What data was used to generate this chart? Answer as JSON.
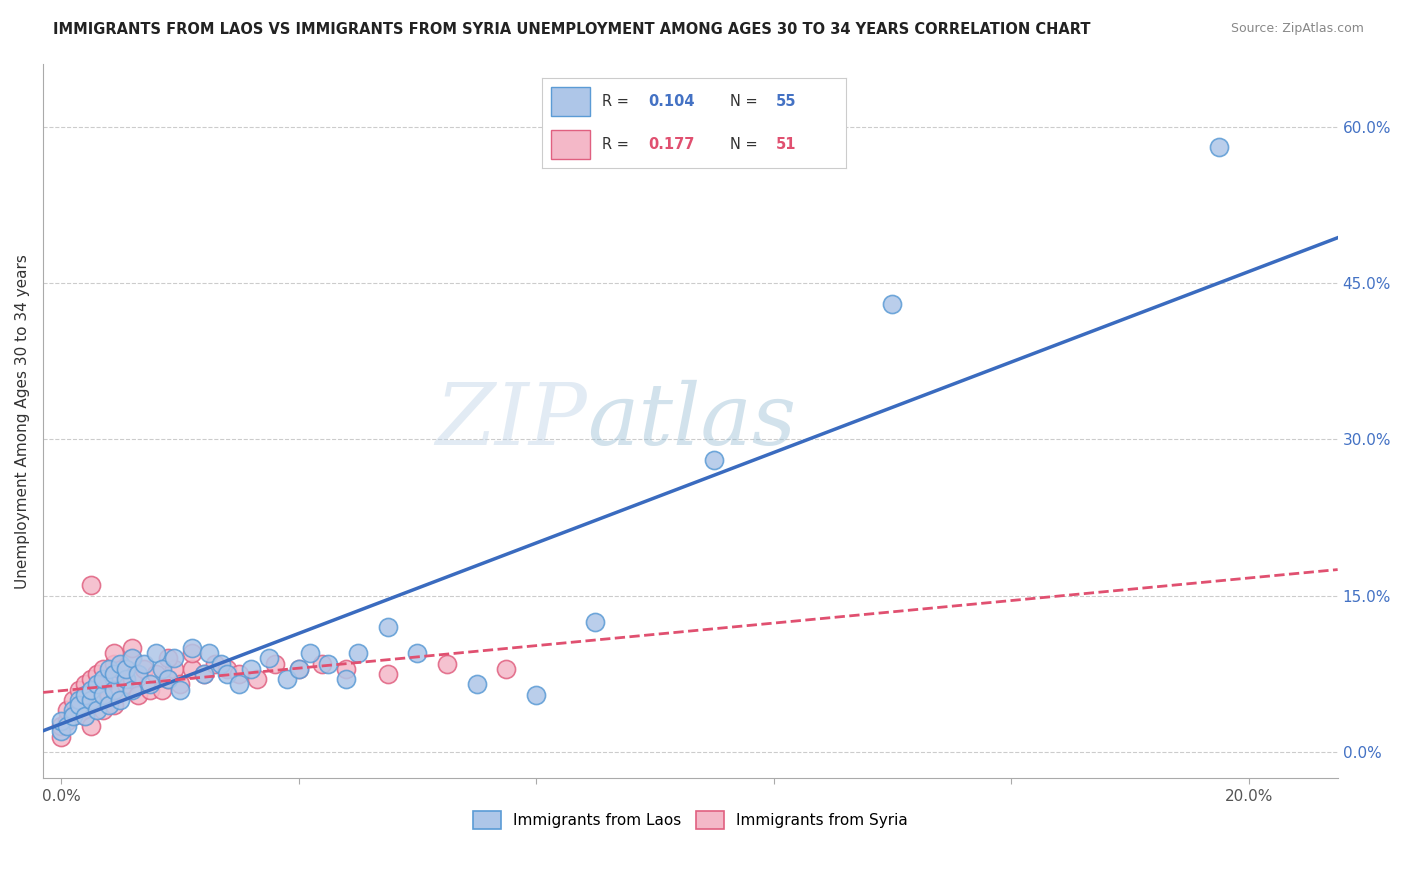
{
  "title": "IMMIGRANTS FROM LAOS VS IMMIGRANTS FROM SYRIA UNEMPLOYMENT AMONG AGES 30 TO 34 YEARS CORRELATION CHART",
  "source": "Source: ZipAtlas.com",
  "ylabel": "Unemployment Among Ages 30 to 34 years",
  "x_ticks": [
    0.0,
    0.04,
    0.08,
    0.12,
    0.16,
    0.2
  ],
  "x_tick_labels": [
    "0.0%",
    "",
    "",
    "",
    "",
    "20.0%"
  ],
  "y_ticks": [
    0.0,
    0.15,
    0.3,
    0.45,
    0.6
  ],
  "y_tick_labels_right": [
    "0.0%",
    "15.0%",
    "30.0%",
    "45.0%",
    "60.0%"
  ],
  "x_min": -0.003,
  "x_max": 0.215,
  "y_min": -0.025,
  "y_max": 0.66,
  "laos_color": "#aec6e8",
  "laos_edge_color": "#5b9bd5",
  "syria_color": "#f4b8c8",
  "syria_edge_color": "#e06080",
  "laos_R": "0.104",
  "laos_N": "55",
  "syria_R": "0.177",
  "syria_N": "51",
  "laos_line_color": "#3a6bbf",
  "laos_line_style": "-",
  "syria_line_color": "#e05070",
  "syria_line_style": "--",
  "watermark_zip": "ZIP",
  "watermark_atlas": "atlas",
  "laos_scatter_x": [
    0.0,
    0.0,
    0.001,
    0.002,
    0.002,
    0.003,
    0.003,
    0.004,
    0.004,
    0.005,
    0.005,
    0.006,
    0.006,
    0.007,
    0.007,
    0.008,
    0.008,
    0.009,
    0.009,
    0.01,
    0.01,
    0.011,
    0.011,
    0.012,
    0.012,
    0.013,
    0.014,
    0.015,
    0.016,
    0.017,
    0.018,
    0.019,
    0.02,
    0.022,
    0.024,
    0.025,
    0.027,
    0.028,
    0.03,
    0.032,
    0.035,
    0.038,
    0.04,
    0.042,
    0.045,
    0.048,
    0.05,
    0.055,
    0.06,
    0.07,
    0.08,
    0.09,
    0.11,
    0.14,
    0.195
  ],
  "laos_scatter_y": [
    0.02,
    0.03,
    0.025,
    0.04,
    0.035,
    0.05,
    0.045,
    0.035,
    0.055,
    0.05,
    0.06,
    0.04,
    0.065,
    0.055,
    0.07,
    0.045,
    0.08,
    0.06,
    0.075,
    0.05,
    0.085,
    0.07,
    0.08,
    0.06,
    0.09,
    0.075,
    0.085,
    0.065,
    0.095,
    0.08,
    0.07,
    0.09,
    0.06,
    0.1,
    0.075,
    0.095,
    0.085,
    0.075,
    0.065,
    0.08,
    0.09,
    0.07,
    0.08,
    0.095,
    0.085,
    0.07,
    0.095,
    0.12,
    0.095,
    0.065,
    0.055,
    0.125,
    0.28,
    0.43,
    0.58
  ],
  "syria_scatter_x": [
    0.0,
    0.0,
    0.001,
    0.001,
    0.002,
    0.002,
    0.003,
    0.003,
    0.004,
    0.004,
    0.005,
    0.005,
    0.006,
    0.006,
    0.007,
    0.007,
    0.008,
    0.008,
    0.009,
    0.009,
    0.01,
    0.01,
    0.011,
    0.012,
    0.012,
    0.013,
    0.014,
    0.015,
    0.016,
    0.017,
    0.018,
    0.019,
    0.02,
    0.022,
    0.024,
    0.026,
    0.028,
    0.03,
    0.033,
    0.036,
    0.04,
    0.044,
    0.048,
    0.055,
    0.065,
    0.075,
    0.005,
    0.009,
    0.012,
    0.018,
    0.022
  ],
  "syria_scatter_y": [
    0.015,
    0.025,
    0.03,
    0.04,
    0.035,
    0.05,
    0.04,
    0.06,
    0.035,
    0.065,
    0.025,
    0.07,
    0.05,
    0.075,
    0.04,
    0.08,
    0.055,
    0.07,
    0.045,
    0.085,
    0.06,
    0.08,
    0.065,
    0.07,
    0.09,
    0.055,
    0.08,
    0.06,
    0.075,
    0.06,
    0.07,
    0.08,
    0.065,
    0.08,
    0.075,
    0.085,
    0.08,
    0.075,
    0.07,
    0.085,
    0.08,
    0.085,
    0.08,
    0.075,
    0.085,
    0.08,
    0.16,
    0.095,
    0.1,
    0.09,
    0.095
  ],
  "legend_R_color": "#4472c4",
  "legend_N_color": "#4472c4",
  "legend_R2_color": "#e05070",
  "legend_N2_color": "#e05070"
}
